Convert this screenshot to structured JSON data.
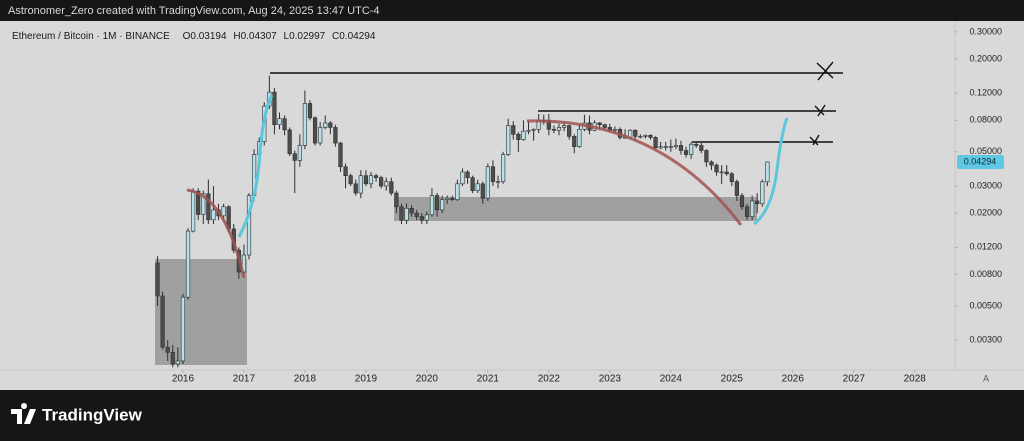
{
  "header": {
    "text": "Astronomer_Zero created with TradingView.com, Aug 24, 2025 13:47 UTC-4"
  },
  "footer": {
    "logo_text": "TradingView"
  },
  "chart_data": {
    "type": "candlestick",
    "symbol": "Ethereum / Bitcoin · 1M · BINANCE",
    "ohlc_labels": [
      "O",
      "H",
      "L",
      "C"
    ],
    "log_scale": true,
    "grid": false,
    "up_color": "#b8e0e6",
    "down_color": "#4d4d4d",
    "border_color": "#2e2e2e",
    "price_tag_color": "#5ec8e5",
    "x": [
      "2015-08",
      "2015-09",
      "2015-10",
      "2015-11",
      "2015-12",
      "2016-01",
      "2016-02",
      "2016-03",
      "2016-04",
      "2016-05",
      "2016-06",
      "2016-07",
      "2016-08",
      "2016-09",
      "2016-10",
      "2016-11",
      "2016-12",
      "2017-01",
      "2017-02",
      "2017-03",
      "2017-04",
      "2017-05",
      "2017-06",
      "2017-07",
      "2017-08",
      "2017-09",
      "2017-10",
      "2017-11",
      "2017-12",
      "2018-01",
      "2018-02",
      "2018-03",
      "2018-04",
      "2018-05",
      "2018-06",
      "2018-07",
      "2018-08",
      "2018-09",
      "2018-10",
      "2018-11",
      "2018-12",
      "2019-01",
      "2019-02",
      "2019-03",
      "2019-04",
      "2019-05",
      "2019-06",
      "2019-07",
      "2019-08",
      "2019-09",
      "2019-10",
      "2019-11",
      "2019-12",
      "2020-01",
      "2020-02",
      "2020-03",
      "2020-04",
      "2020-05",
      "2020-06",
      "2020-07",
      "2020-08",
      "2020-09",
      "2020-10",
      "2020-11",
      "2020-12",
      "2021-01",
      "2021-02",
      "2021-03",
      "2021-04",
      "2021-05",
      "2021-06",
      "2021-07",
      "2021-08",
      "2021-09",
      "2021-10",
      "2021-11",
      "2021-12",
      "2022-01",
      "2022-02",
      "2022-03",
      "2022-04",
      "2022-05",
      "2022-06",
      "2022-07",
      "2022-08",
      "2022-09",
      "2022-10",
      "2022-11",
      "2022-12",
      "2023-01",
      "2023-02",
      "2023-03",
      "2023-04",
      "2023-05",
      "2023-06",
      "2023-07",
      "2023-08",
      "2023-09",
      "2023-10",
      "2023-11",
      "2023-12",
      "2024-01",
      "2024-02",
      "2024-03",
      "2024-04",
      "2024-05",
      "2024-06",
      "2024-07",
      "2024-08",
      "2024-09",
      "2024-10",
      "2024-11",
      "2024-12",
      "2025-01",
      "2025-02",
      "2025-03",
      "2025-04",
      "2025-05",
      "2025-06",
      "2025-07",
      "2025-08"
    ],
    "open": [
      0.0095,
      0.0058,
      0.0027,
      0.0025,
      0.0021,
      0.0022,
      0.0057,
      0.0153,
      0.0278,
      0.0196,
      0.0267,
      0.0181,
      0.021,
      0.0192,
      0.022,
      0.0158,
      0.0115,
      0.0083,
      0.0107,
      0.026,
      0.048,
      0.0582,
      0.099,
      0.122,
      0.075,
      0.082,
      0.0694,
      0.0486,
      0.044,
      0.055,
      0.103,
      0.083,
      0.057,
      0.072,
      0.077,
      0.072,
      0.057,
      0.04,
      0.035,
      0.031,
      0.027,
      0.035,
      0.031,
      0.035,
      0.034,
      0.03,
      0.032,
      0.027,
      0.022,
      0.018,
      0.0215,
      0.02,
      0.019,
      0.018,
      0.0195,
      0.026,
      0.021,
      0.0245,
      0.025,
      0.0245,
      0.031,
      0.037,
      0.034,
      0.028,
      0.031,
      0.025,
      0.04,
      0.032,
      0.032,
      0.048,
      0.074,
      0.065,
      0.06,
      0.068,
      0.069,
      0.07,
      0.08,
      0.08,
      0.07,
      0.069,
      0.072,
      0.074,
      0.063,
      0.054,
      0.07,
      0.077,
      0.069,
      0.077,
      0.075,
      0.072,
      0.069,
      0.07,
      0.062,
      0.062,
      0.069,
      0.063,
      0.063,
      0.064,
      0.062,
      0.053,
      0.054,
      0.054,
      0.054,
      0.055,
      0.051,
      0.048,
      0.056,
      0.055,
      0.051,
      0.043,
      0.041,
      0.037,
      0.037,
      0.036,
      0.032,
      0.026,
      0.022,
      0.019,
      0.024,
      0.023,
      0.03194
    ],
    "high": [
      0.0105,
      0.0062,
      0.003,
      0.0028,
      0.0027,
      0.006,
      0.016,
      0.029,
      0.029,
      0.028,
      0.033,
      0.03,
      0.023,
      0.023,
      0.0225,
      0.017,
      0.012,
      0.0125,
      0.027,
      0.052,
      0.062,
      0.105,
      0.156,
      0.13,
      0.09,
      0.086,
      0.072,
      0.051,
      0.065,
      0.125,
      0.108,
      0.085,
      0.078,
      0.086,
      0.079,
      0.075,
      0.058,
      0.042,
      0.036,
      0.033,
      0.038,
      0.038,
      0.037,
      0.036,
      0.035,
      0.034,
      0.034,
      0.028,
      0.023,
      0.023,
      0.0225,
      0.021,
      0.02,
      0.0205,
      0.029,
      0.027,
      0.026,
      0.026,
      0.026,
      0.033,
      0.039,
      0.038,
      0.035,
      0.033,
      0.032,
      0.042,
      0.044,
      0.035,
      0.05,
      0.082,
      0.079,
      0.067,
      0.08,
      0.079,
      0.071,
      0.088,
      0.087,
      0.088,
      0.074,
      0.076,
      0.078,
      0.075,
      0.065,
      0.076,
      0.087,
      0.086,
      0.08,
      0.078,
      0.076,
      0.076,
      0.073,
      0.072,
      0.07,
      0.07,
      0.07,
      0.065,
      0.065,
      0.065,
      0.063,
      0.058,
      0.058,
      0.06,
      0.061,
      0.059,
      0.054,
      0.058,
      0.057,
      0.057,
      0.052,
      0.044,
      0.042,
      0.041,
      0.041,
      0.037,
      0.033,
      0.027,
      0.023,
      0.026,
      0.027,
      0.033,
      0.04307
    ],
    "low": [
      0.005,
      0.0026,
      0.0022,
      0.002,
      0.002,
      0.0021,
      0.0055,
      0.015,
      0.018,
      0.017,
      0.017,
      0.017,
      0.018,
      0.018,
      0.015,
      0.011,
      0.0075,
      0.008,
      0.01,
      0.024,
      0.038,
      0.055,
      0.095,
      0.065,
      0.07,
      0.064,
      0.047,
      0.027,
      0.04,
      0.052,
      0.08,
      0.055,
      0.055,
      0.07,
      0.065,
      0.054,
      0.037,
      0.029,
      0.03,
      0.026,
      0.025,
      0.03,
      0.029,
      0.032,
      0.029,
      0.028,
      0.026,
      0.02,
      0.017,
      0.017,
      0.019,
      0.018,
      0.017,
      0.017,
      0.019,
      0.019,
      0.02,
      0.023,
      0.024,
      0.024,
      0.03,
      0.031,
      0.027,
      0.027,
      0.023,
      0.024,
      0.03,
      0.029,
      0.031,
      0.047,
      0.06,
      0.05,
      0.059,
      0.065,
      0.059,
      0.066,
      0.075,
      0.064,
      0.066,
      0.064,
      0.068,
      0.06,
      0.049,
      0.053,
      0.068,
      0.065,
      0.068,
      0.069,
      0.07,
      0.067,
      0.066,
      0.06,
      0.061,
      0.061,
      0.06,
      0.061,
      0.061,
      0.06,
      0.052,
      0.052,
      0.051,
      0.05,
      0.052,
      0.048,
      0.046,
      0.045,
      0.053,
      0.049,
      0.04,
      0.038,
      0.035,
      0.031,
      0.035,
      0.03,
      0.024,
      0.021,
      0.018,
      0.018,
      0.02,
      0.022,
      0.02997
    ],
    "close": [
      0.0058,
      0.0027,
      0.0025,
      0.0021,
      0.0022,
      0.0057,
      0.0153,
      0.0278,
      0.0196,
      0.0267,
      0.0181,
      0.021,
      0.0192,
      0.022,
      0.0158,
      0.0115,
      0.0083,
      0.0107,
      0.026,
      0.048,
      0.0582,
      0.099,
      0.122,
      0.075,
      0.082,
      0.0694,
      0.0486,
      0.044,
      0.055,
      0.103,
      0.083,
      0.057,
      0.072,
      0.077,
      0.072,
      0.057,
      0.04,
      0.035,
      0.031,
      0.027,
      0.035,
      0.031,
      0.035,
      0.034,
      0.03,
      0.032,
      0.027,
      0.022,
      0.018,
      0.0215,
      0.02,
      0.019,
      0.018,
      0.0195,
      0.026,
      0.021,
      0.0245,
      0.025,
      0.0245,
      0.031,
      0.037,
      0.034,
      0.028,
      0.031,
      0.025,
      0.04,
      0.032,
      0.032,
      0.048,
      0.074,
      0.065,
      0.06,
      0.068,
      0.069,
      0.07,
      0.08,
      0.08,
      0.07,
      0.069,
      0.072,
      0.074,
      0.063,
      0.054,
      0.07,
      0.077,
      0.069,
      0.077,
      0.075,
      0.072,
      0.069,
      0.07,
      0.062,
      0.062,
      0.069,
      0.063,
      0.063,
      0.064,
      0.062,
      0.053,
      0.054,
      0.054,
      0.054,
      0.055,
      0.051,
      0.048,
      0.056,
      0.055,
      0.051,
      0.043,
      0.041,
      0.037,
      0.037,
      0.036,
      0.032,
      0.026,
      0.022,
      0.019,
      0.024,
      0.023,
      0.03194,
      0.04294
    ],
    "xlim": [
      2013.0,
      2028.66
    ],
    "xticks": [
      2016,
      2017,
      2018,
      2019,
      2020,
      2021,
      2022,
      2023,
      2024,
      2025,
      2026,
      2027,
      2028
    ],
    "ylim": [
      0.00192,
      0.353
    ],
    "yticks": [
      {
        "value": 0.3,
        "label": "0.30000"
      },
      {
        "value": 0.2,
        "label": "0.20000"
      },
      {
        "value": 0.12,
        "label": "0.12000"
      },
      {
        "value": 0.08,
        "label": "0.08000"
      },
      {
        "value": 0.05,
        "label": "0.05000"
      },
      {
        "value": 0.03,
        "label": "0.03000"
      },
      {
        "value": 0.02,
        "label": "0.02000"
      },
      {
        "value": 0.012,
        "label": "0.01200"
      },
      {
        "value": 0.008,
        "label": "0.00800"
      },
      {
        "value": 0.005,
        "label": "0.00500"
      },
      {
        "value": 0.003,
        "label": "0.00300"
      }
    ],
    "auto_scale_label": "A"
  }
}
